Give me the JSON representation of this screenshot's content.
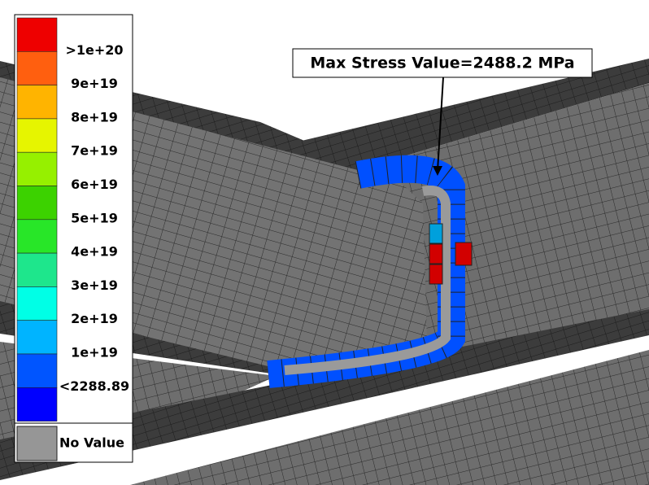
{
  "legend": {
    "levels": [
      {
        "color": "#ee0000"
      },
      {
        "color": "#ff5f0f"
      },
      {
        "color": "#ffb400"
      },
      {
        "color": "#e6f500"
      },
      {
        "color": "#96f000"
      },
      {
        "color": "#3cd200"
      },
      {
        "color": "#28e628"
      },
      {
        "color": "#1ee68c"
      },
      {
        "color": "#00ffe6"
      },
      {
        "color": "#00b4ff"
      },
      {
        "color": "#0055ff"
      },
      {
        "color": "#0000ff"
      }
    ],
    "labels": [
      ">1e+20",
      "9e+19",
      "8e+19",
      "7e+19",
      "6e+19",
      "5e+19",
      "4e+19",
      "3e+19",
      "2e+19",
      "1e+19",
      "<2288.89"
    ],
    "no_value": {
      "color": "#969696",
      "label": "No Value"
    }
  },
  "annotation": {
    "text": "Max Stress Value=2488.2 MPa"
  }
}
